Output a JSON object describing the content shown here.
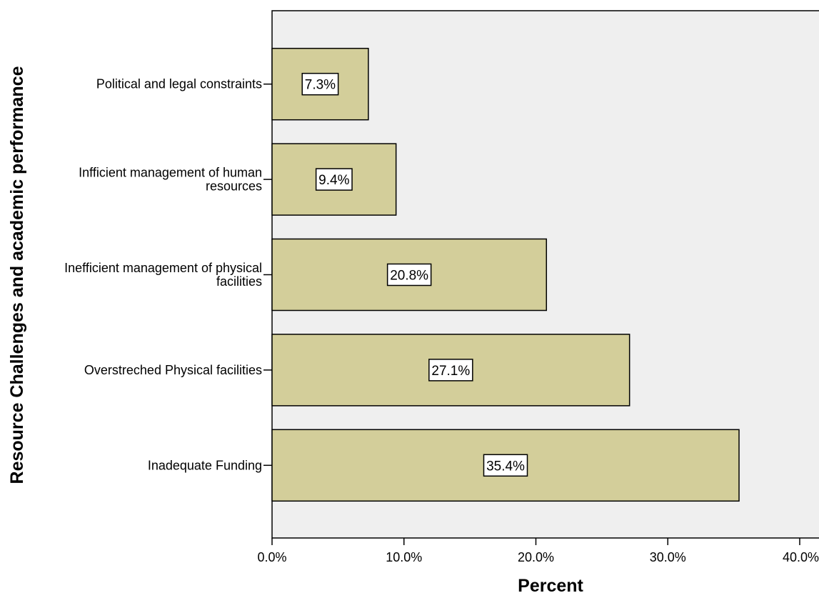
{
  "chart_data": {
    "type": "bar",
    "orientation": "horizontal",
    "title": "",
    "xlabel": "Percent",
    "ylabel": "Resource Challenges and academic performance",
    "categories": [
      [
        "Political and legal constraints"
      ],
      [
        "Infficient management of human",
        "resources"
      ],
      [
        "Inefficient management of physical",
        "facilities"
      ],
      [
        "Overstreched Physical facilities"
      ],
      [
        "Inadequate Funding"
      ]
    ],
    "values": [
      7.3,
      9.4,
      20.8,
      27.1,
      35.4
    ],
    "data_labels": [
      "7.3%",
      "9.4%",
      "20.8%",
      "27.1%",
      "35.4%"
    ],
    "xlim": [
      0,
      40
    ],
    "xticks": [
      "0.0%",
      "10.0%",
      "20.0%",
      "30.0%",
      "40.0%"
    ],
    "grid": false,
    "legend": "none"
  },
  "colors": {
    "bar_fill": "#d3ce9a",
    "plot_background": "#efefef",
    "bar_stroke": "#000000"
  }
}
